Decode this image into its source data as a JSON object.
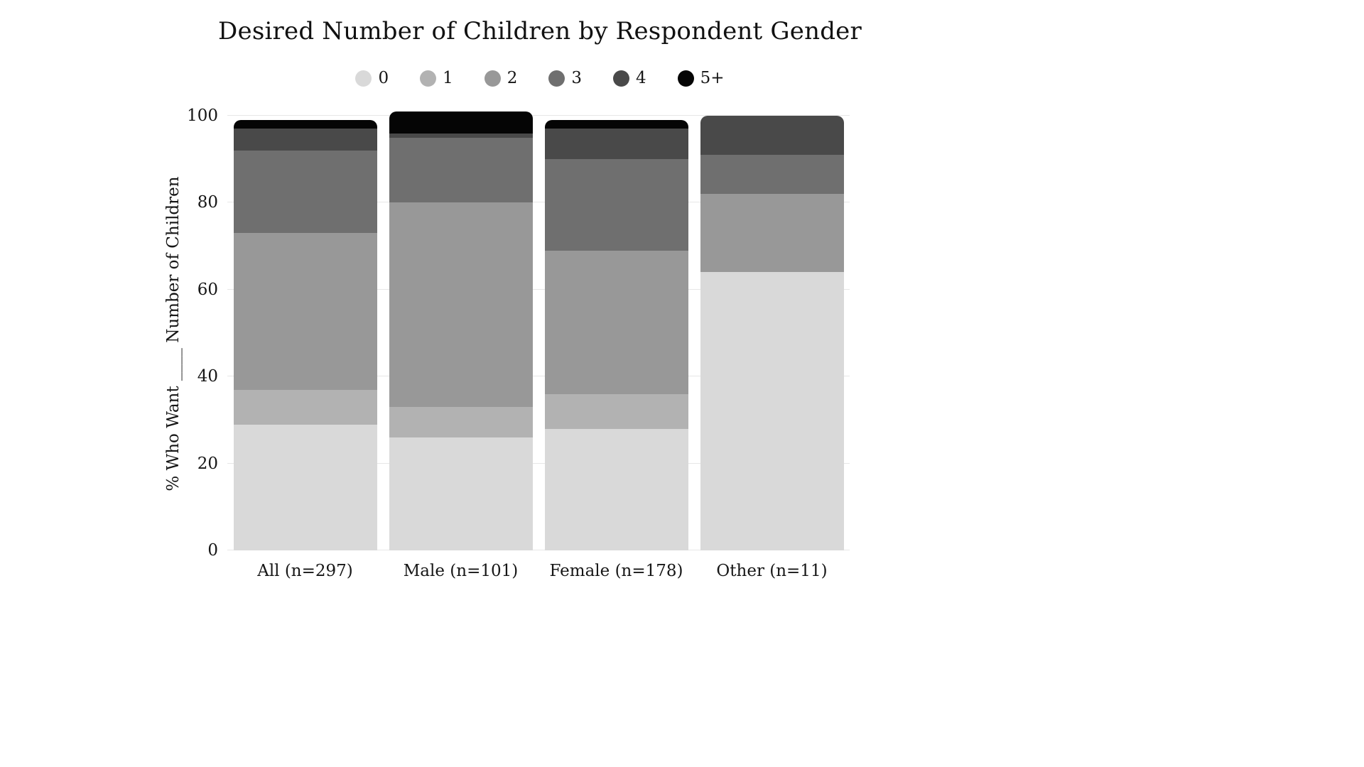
{
  "title": "Desired Number of Children by Respondent Gender",
  "y_axis": {
    "label": "% Who Want ____ Number of Children",
    "ticks": [
      0,
      20,
      40,
      60,
      80,
      100
    ]
  },
  "chart_data": {
    "type": "bar",
    "stacked": true,
    "title": "Desired Number of Children by Respondent Gender",
    "xlabel": "",
    "ylabel": "% Who Want ____ Number of Children",
    "ylim": [
      0,
      100
    ],
    "yticks": [
      0,
      20,
      40,
      60,
      80,
      100
    ],
    "grid": true,
    "legend_position": "top",
    "categories": [
      "All (n=297)",
      "Male (n=101)",
      "Female (n=178)",
      "Other (n=11)"
    ],
    "series": [
      {
        "name": "0",
        "color": "#d9d9d9",
        "values": [
          29,
          26,
          28,
          64
        ]
      },
      {
        "name": "1",
        "color": "#b2b2b2",
        "values": [
          8,
          7,
          8,
          0
        ]
      },
      {
        "name": "2",
        "color": "#989898",
        "values": [
          36,
          47,
          33,
          18
        ]
      },
      {
        "name": "3",
        "color": "#6f6f6f",
        "values": [
          19,
          15,
          21,
          9
        ]
      },
      {
        "name": "4",
        "color": "#494949",
        "values": [
          5,
          1,
          7,
          9
        ]
      },
      {
        "name": "5+",
        "color": "#050505",
        "values": [
          2,
          5,
          2,
          0
        ]
      }
    ]
  }
}
